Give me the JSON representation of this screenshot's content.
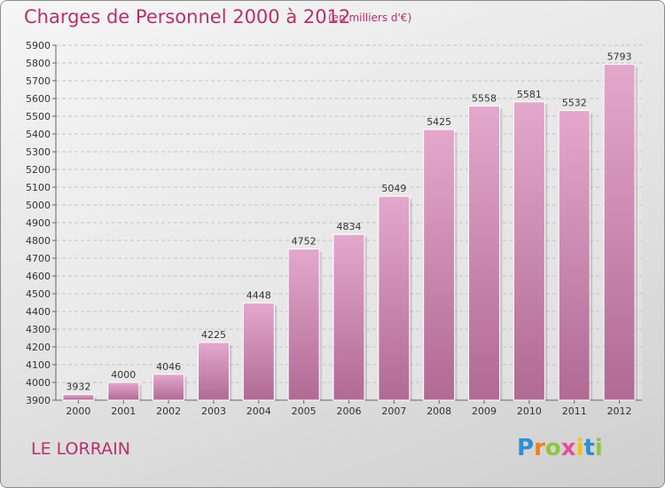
{
  "chart_data": {
    "type": "bar",
    "title": "Charges de Personnel 2000 à 2012",
    "subtitle": "(en milliers d'€)",
    "categories": [
      "2000",
      "2001",
      "2002",
      "2003",
      "2004",
      "2005",
      "2006",
      "2007",
      "2008",
      "2009",
      "2010",
      "2011",
      "2012"
    ],
    "values": [
      3932,
      4000,
      4046,
      4225,
      4448,
      4752,
      4834,
      5049,
      5425,
      5558,
      5581,
      5532,
      5793
    ],
    "ylim": [
      3900,
      5900
    ],
    "yticks": [
      3900,
      4000,
      4100,
      4200,
      4300,
      4400,
      4500,
      4600,
      4700,
      4800,
      4900,
      5000,
      5100,
      5200,
      5300,
      5400,
      5500,
      5600,
      5700,
      5800,
      5900
    ],
    "xlabel": "",
    "ylabel": "",
    "grid": true,
    "bar_color": "#d98fb8"
  },
  "footer": {
    "place": "LE LORRAIN",
    "logo_letters": [
      {
        "ch": "P",
        "color": "#2f8fd1"
      },
      {
        "ch": "r",
        "color": "#f07f1f"
      },
      {
        "ch": "o",
        "color": "#8cc63f"
      },
      {
        "ch": "x",
        "color": "#e64e9a"
      },
      {
        "ch": "i",
        "color": "#f2c21b"
      },
      {
        "ch": "t",
        "color": "#2f8fd1"
      },
      {
        "ch": "i",
        "color": "#8cc63f"
      }
    ]
  }
}
